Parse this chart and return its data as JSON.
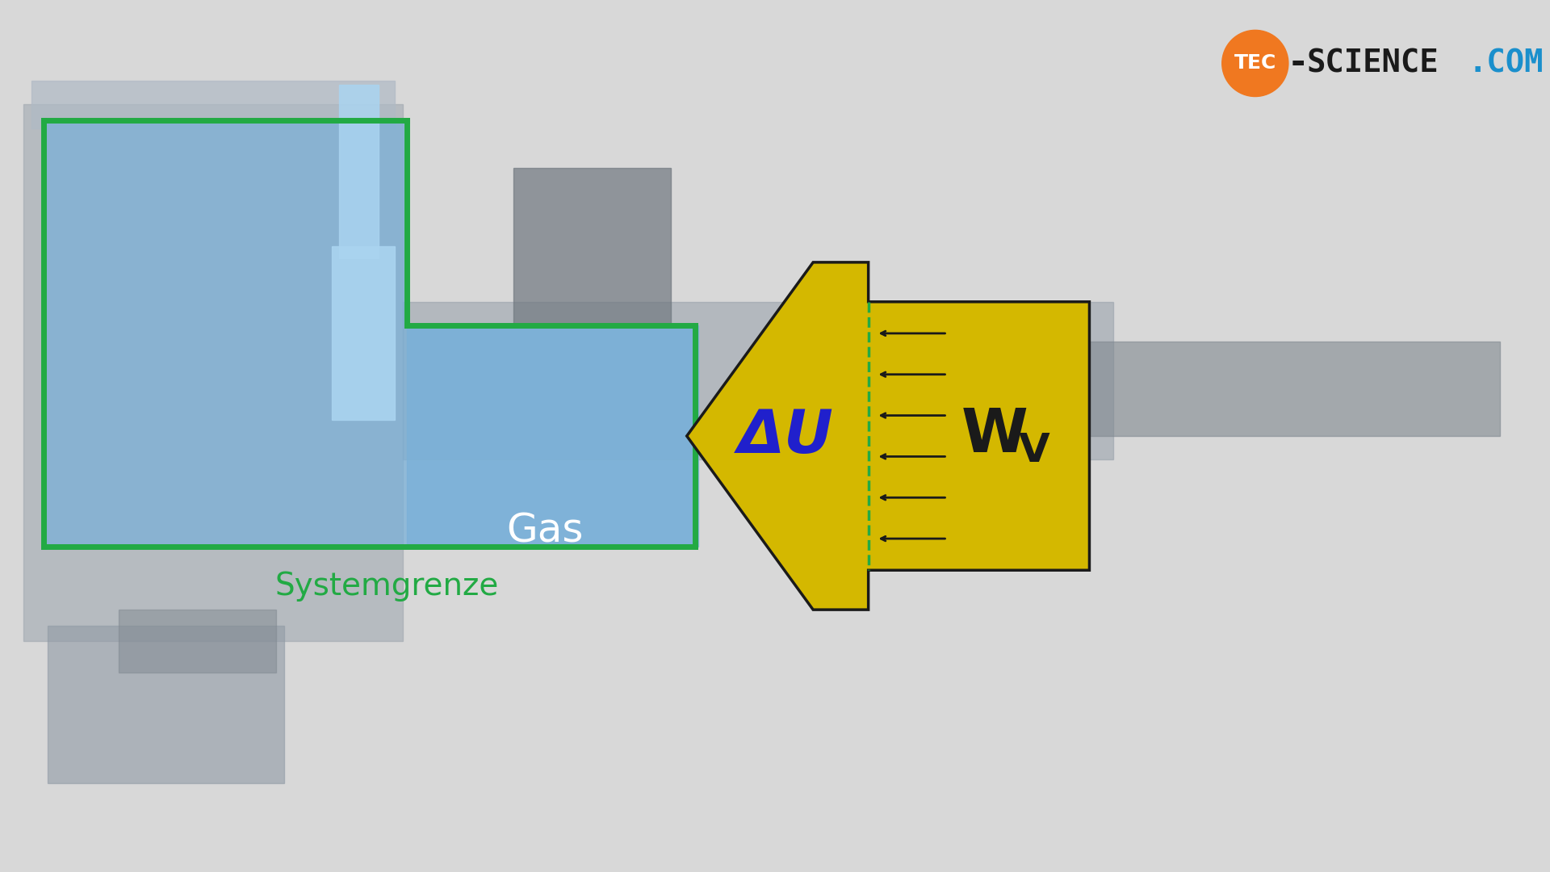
{
  "bg_color": "#d8d8d8",
  "logo_text1": "TEC",
  "logo_text2": "-SCIENCE.COM",
  "logo_circle_color": "#f07820",
  "logo_text1_color": "#1a1a1a",
  "logo_text2_color": "#1a8fcc",
  "arrow_body_color": "#d4b800",
  "arrow_outline_color": "#1a1a1a",
  "dU_text": "ΔU",
  "dU_color": "#2020cc",
  "wv_text": "W",
  "wv_sub": "V",
  "wv_color": "#1a1a1a",
  "gas_label": "Gas",
  "gas_label_color": "#ffffff",
  "systemgrenze_label": "Systemgrenze",
  "systemgrenze_color": "#22aa44",
  "system_border_color": "#22aa44",
  "blue_fill_color": "#7ab0d8",
  "blue_fill_alpha": 0.75,
  "dashed_line_color": "#22aa44",
  "small_arrow_color": "#1a1a1a",
  "num_small_arrows": 6
}
